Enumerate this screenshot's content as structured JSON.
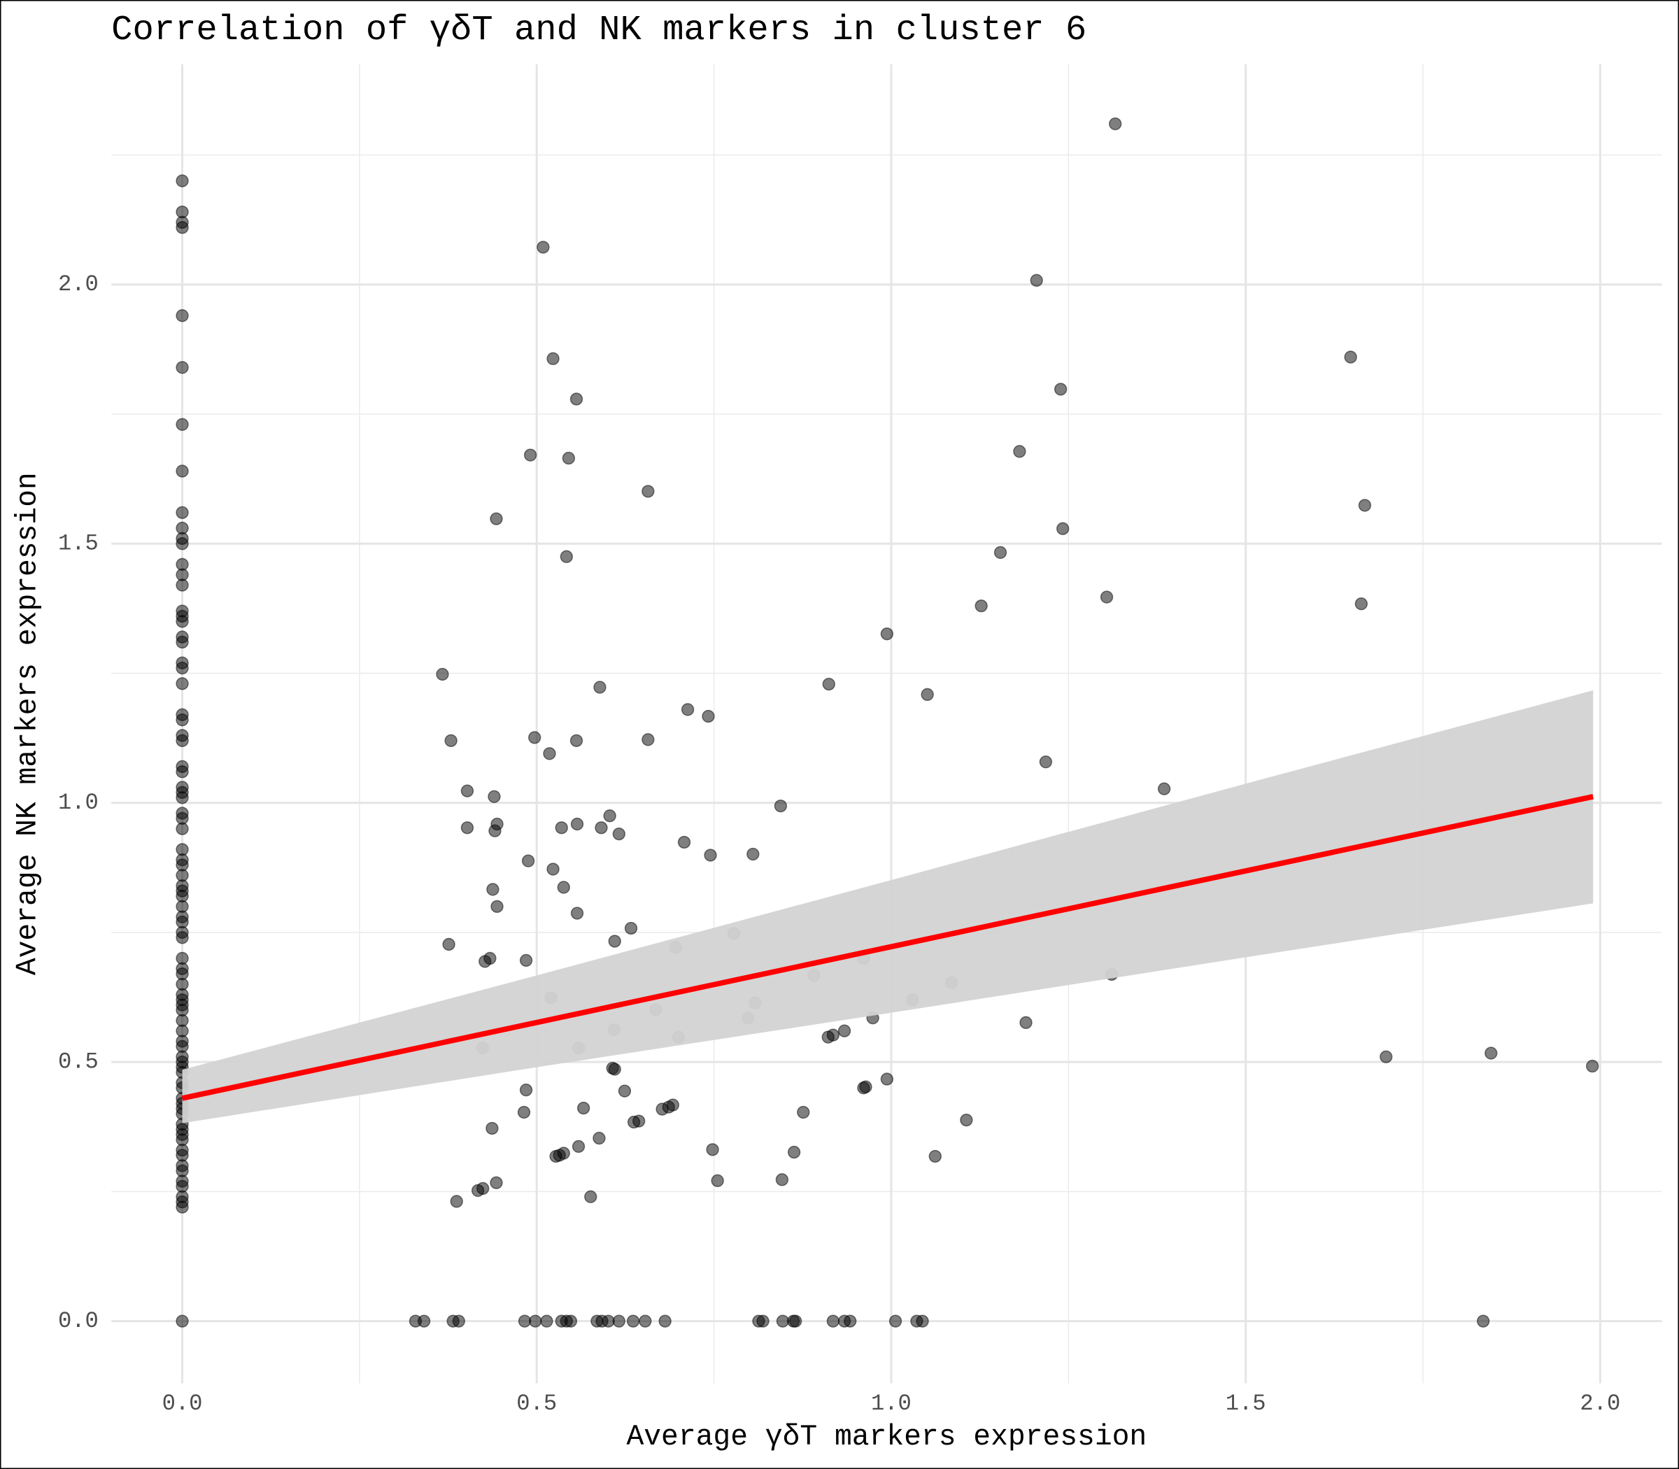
{
  "chart_data": {
    "type": "scatter",
    "title": "Correlation of γδT and NK markers in cluster 6",
    "x_label": "Average γδT markers expression",
    "y_label": "Average NK markers expression",
    "xlim": [
      -0.1,
      2.087
    ],
    "ylim": [
      -0.12,
      2.425
    ],
    "xticks": [
      {
        "value": 0,
        "label": "0.0"
      },
      {
        "value": 0.5,
        "label": "0.5"
      },
      {
        "value": 1,
        "label": "1.0"
      },
      {
        "value": 1.5,
        "label": "1.5"
      },
      {
        "value": 2,
        "label": "2.0"
      }
    ],
    "yticks": [
      {
        "value": 0,
        "label": "0.0"
      },
      {
        "value": 0.5,
        "label": "0.5"
      },
      {
        "value": 1,
        "label": "1.0"
      },
      {
        "value": 1.5,
        "label": "1.5"
      },
      {
        "value": 2,
        "label": "2.0"
      }
    ],
    "grid": true,
    "points": {
      "color": "#000000",
      "opacity": 0.5,
      "x": [
        0,
        0,
        0,
        0,
        0,
        0,
        0,
        0,
        0,
        0,
        0,
        0,
        0,
        0,
        0,
        0,
        0,
        0,
        0,
        0,
        0,
        0,
        0,
        0,
        0,
        0,
        0,
        0,
        0,
        0,
        0,
        0,
        0,
        0,
        0,
        0,
        0,
        0,
        0,
        0,
        0,
        0,
        0,
        0,
        0,
        0,
        0,
        0,
        0,
        0,
        0,
        0,
        0,
        0,
        0,
        0,
        0,
        0,
        0,
        0,
        0,
        0,
        0,
        0,
        0,
        0,
        0,
        0,
        0,
        0,
        0,
        0,
        0,
        0,
        0,
        0,
        0,
        0,
        0,
        0,
        0,
        0,
        0,
        1.316,
        0.509,
        1.205,
        0.523,
        1.648,
        1.239,
        0.556,
        1.181,
        0.491,
        0.545,
        0.657,
        1.668,
        0.443,
        1.242,
        1.154,
        0.542,
        1.304,
        1.663,
        1.127,
        0.994,
        0.367,
        0.589,
        0.912,
        1.051,
        0.713,
        0.742,
        0.379,
        0.497,
        0.657,
        0.556,
        0.518,
        1.218,
        1.385,
        0.402,
        0.44,
        0.844,
        0.603,
        0.557,
        0.444,
        0.402,
        0.535,
        0.591,
        0.441,
        0.616,
        0.708,
        0.745,
        0.805,
        0.488,
        0.523,
        0.538,
        0.438,
        0.444,
        0.557,
        0.633,
        0.778,
        0.61,
        0.376,
        0.696,
        0.961,
        0.434,
        0.427,
        0.485,
        0.891,
        1.311,
        1.085,
        0.52,
        1.03,
        0.808,
        0.668,
        0.798,
        0.974,
        1.19,
        0.609,
        0.934,
        0.918,
        0.911,
        0.7,
        0.424,
        0.559,
        1.698,
        1.846,
        1.989,
        0.607,
        0.61,
        0.994,
        0.964,
        0.961,
        0.624,
        0.485,
        0.566,
        0.692,
        0.686,
        0.677,
        0.876,
        0.482,
        1.106,
        0.644,
        0.637,
        0.437,
        0.588,
        0.559,
        0.748,
        0.863,
        1.062,
        0.538,
        0.532,
        0.527,
        0.755,
        0.846,
        0.443,
        0.424,
        0.417,
        0.576,
        0.387,
        0.329,
        0.341,
        0.382,
        0.39,
        0.483,
        0.498,
        0.514,
        0.535,
        0.542,
        0.548,
        0.585,
        0.592,
        0.601,
        0.616,
        0.636,
        0.653,
        0.681,
        0.813,
        0.819,
        0.847,
        0.862,
        0.865,
        0.918,
        0.934,
        0.942,
        1.006,
        1.036,
        1.044,
        1.835
      ],
      "y": [
        2.2,
        2.14,
        2.11,
        2.12,
        1.94,
        1.84,
        1.73,
        1.64,
        1.56,
        1.53,
        1.51,
        1.5,
        1.46,
        1.44,
        1.42,
        1.37,
        1.36,
        1.35,
        1.32,
        1.31,
        1.27,
        1.26,
        1.23,
        1.17,
        1.16,
        1.13,
        1.12,
        1.07,
        1.06,
        1.03,
        1.02,
        1.01,
        0.98,
        0.97,
        0.95,
        0.91,
        0.89,
        0.88,
        0.86,
        0.84,
        0.83,
        0.82,
        0.8,
        0.78,
        0.77,
        0.75,
        0.74,
        0.7,
        0.68,
        0.67,
        0.65,
        0.63,
        0.62,
        0.61,
        0.6,
        0.58,
        0.56,
        0.54,
        0.53,
        0.51,
        0.5,
        0.49,
        0.48,
        0.46,
        0.45,
        0.43,
        0.42,
        0.41,
        0.4,
        0.38,
        0.37,
        0.36,
        0.35,
        0.33,
        0.32,
        0.3,
        0.29,
        0.27,
        0.26,
        0.24,
        0.23,
        0.22,
        0,
        2.31,
        2.072,
        2.008,
        1.857,
        1.86,
        1.798,
        1.779,
        1.678,
        1.671,
        1.665,
        1.601,
        1.574,
        1.548,
        1.529,
        1.483,
        1.475,
        1.397,
        1.384,
        1.38,
        1.326,
        1.248,
        1.223,
        1.229,
        1.209,
        1.18,
        1.167,
        1.12,
        1.126,
        1.122,
        1.12,
        1.095,
        1.079,
        1.027,
        1.023,
        1.012,
        0.994,
        0.975,
        0.959,
        0.959,
        0.952,
        0.952,
        0.952,
        0.946,
        0.94,
        0.924,
        0.899,
        0.901,
        0.888,
        0.872,
        0.837,
        0.833,
        0.8,
        0.787,
        0.758,
        0.748,
        0.733,
        0.727,
        0.721,
        0.7,
        0.7,
        0.694,
        0.696,
        0.667,
        0.669,
        0.653,
        0.624,
        0.62,
        0.614,
        0.601,
        0.585,
        0.585,
        0.576,
        0.562,
        0.56,
        0.552,
        0.548,
        0.548,
        0.527,
        0.527,
        0.51,
        0.517,
        0.492,
        0.488,
        0.486,
        0.467,
        0.452,
        0.45,
        0.444,
        0.446,
        0.411,
        0.417,
        0.413,
        0.409,
        0.403,
        0.403,
        0.388,
        0.386,
        0.384,
        0.372,
        0.353,
        0.337,
        0.331,
        0.326,
        0.318,
        0.324,
        0.32,
        0.318,
        0.271,
        0.273,
        0.267,
        0.256,
        0.252,
        0.24,
        0.231,
        0,
        0,
        0,
        0,
        0,
        0,
        0,
        0,
        0,
        0,
        0,
        0,
        0,
        0,
        0,
        0,
        0,
        0,
        0,
        0,
        0,
        0,
        0,
        0,
        0,
        0,
        0,
        0,
        0
      ]
    },
    "band": {
      "color": "#d3d3d3",
      "x": [
        0,
        0.5,
        1,
        1.5,
        1.99
      ],
      "lower": [
        0.382,
        0.49,
        0.595,
        0.702,
        0.806
      ],
      "upper": [
        0.485,
        0.667,
        0.851,
        1.037,
        1.217
      ]
    },
    "fit": {
      "color": "#ff0000",
      "x": [
        0,
        1.99
      ],
      "y": [
        0.43,
        1.012
      ]
    }
  }
}
